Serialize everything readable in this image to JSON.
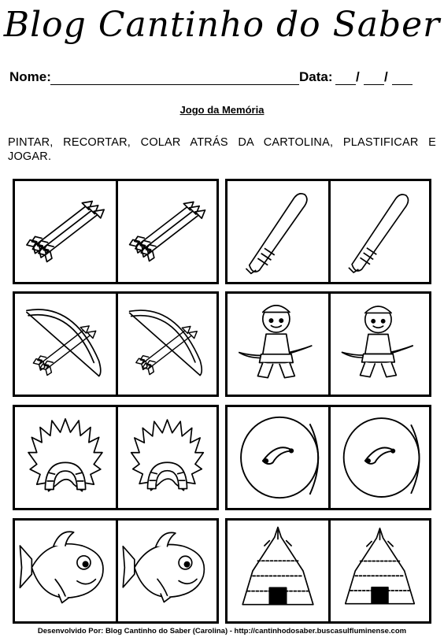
{
  "header": {
    "title": "Blog Cantinho do Saber",
    "name_label": "Nome:",
    "date_label": "Data:",
    "date_sep_1": "/",
    "date_sep_2": "/"
  },
  "subtitle": "Jogo da Memória",
  "instructions": "PINTAR, RECORTAR, COLAR ATRÁS DA CARTOLINA, PLASTIFICAR E JOGAR.",
  "cards": [
    {
      "icon": "arrows-icon"
    },
    {
      "icon": "club-icon"
    },
    {
      "icon": "bow-and-arrow-icon"
    },
    {
      "icon": "indian-boy-archer-icon"
    },
    {
      "icon": "feather-headdress-icon"
    },
    {
      "icon": "shield-icon"
    },
    {
      "icon": "fish-icon"
    },
    {
      "icon": "straw-hut-icon"
    }
  ],
  "footer": "Desenvolvido Por: Blog Cantinho do Saber (Carolina) - http://cantinhodosaber.buscasulfluminense.com"
}
